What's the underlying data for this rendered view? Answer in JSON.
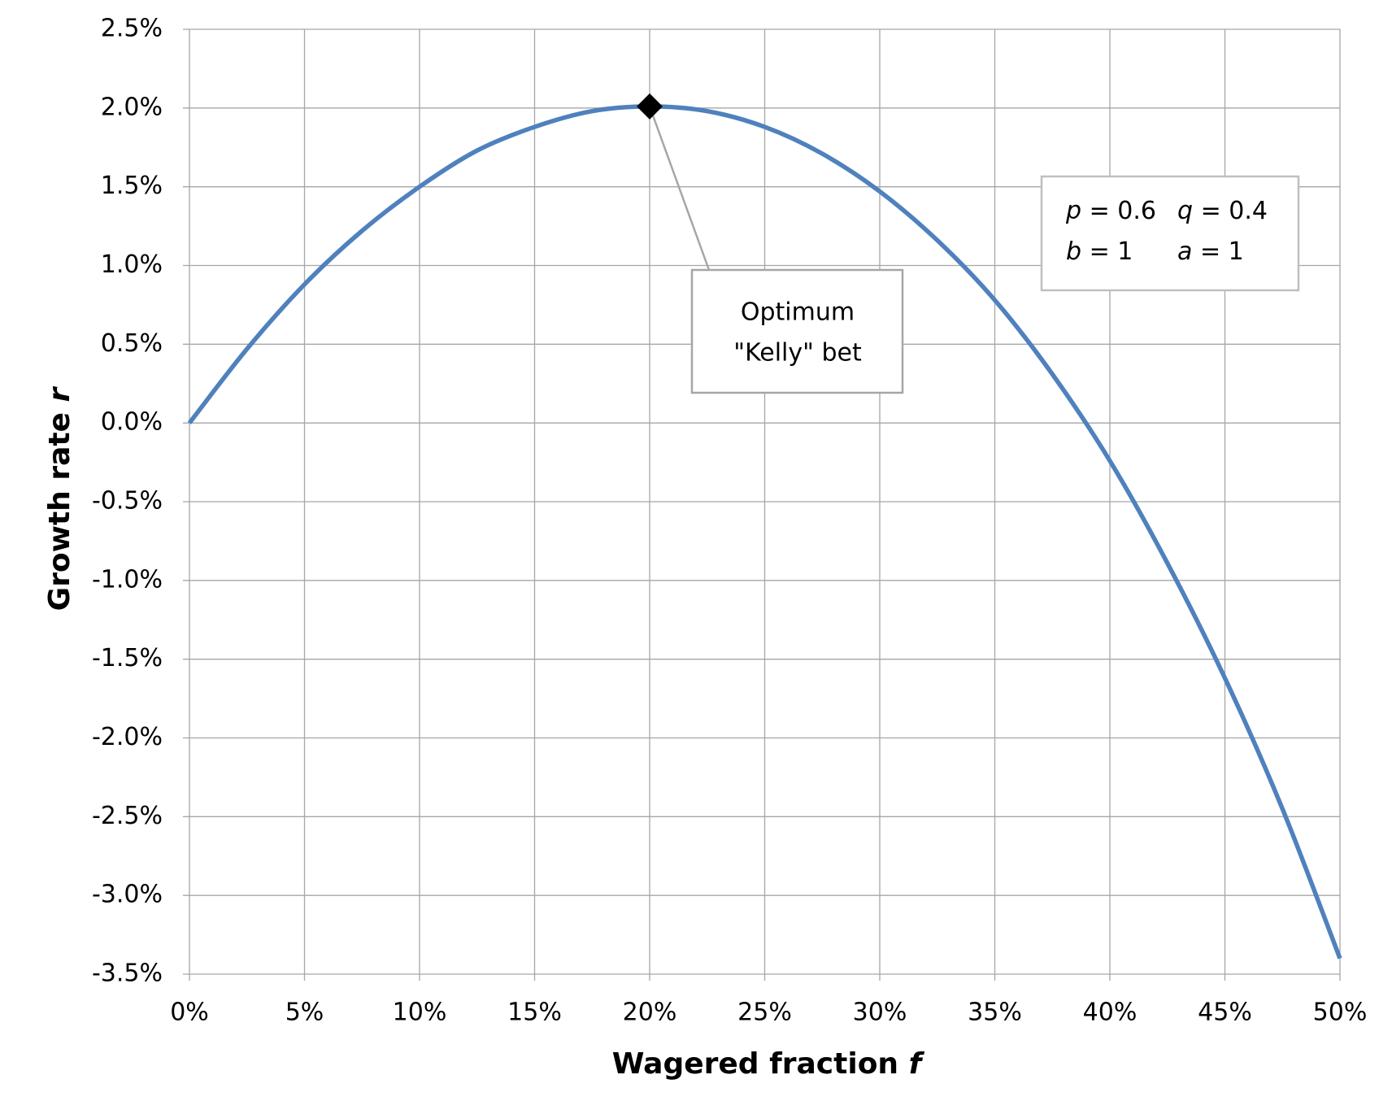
{
  "chart_data": {
    "type": "line",
    "x_label": "Wagered fraction",
    "x_label_symbol": "f",
    "y_label": "Growth rate",
    "y_label_symbol": "r",
    "x": [
      0,
      2.5,
      5,
      7.5,
      10,
      12.5,
      15,
      17.5,
      20,
      22.5,
      25,
      27.5,
      30,
      32.5,
      35,
      37.5,
      40,
      42.5,
      45,
      47.5,
      50
    ],
    "series": [
      {
        "name": "r",
        "color": "#4f81bd",
        "values": [
          0,
          0.47,
          0.88,
          1.22,
          1.5,
          1.73,
          1.88,
          1.98,
          2.01,
          1.98,
          1.88,
          1.71,
          1.47,
          1.16,
          0.78,
          0.31,
          -0.24,
          -0.89,
          -1.62,
          -2.45,
          -3.4
        ]
      }
    ],
    "marker": {
      "x": 20,
      "y": 2.01,
      "color": "#000000"
    },
    "annotation": [
      "Optimum",
      "\"Kelly\" bet"
    ],
    "params": [
      [
        {
          "symbol": "p",
          "text": "= 0.6"
        },
        {
          "symbol": "q",
          "text": "= 0.4"
        }
      ],
      [
        {
          "symbol": "b",
          "text": "= 1"
        },
        {
          "symbol": "a",
          "text": "= 1"
        }
      ]
    ],
    "xlim": [
      0,
      50
    ],
    "xticks": [
      {
        "value": 0,
        "label": "0%"
      },
      {
        "value": 5,
        "label": "5%"
      },
      {
        "value": 10,
        "label": "10%"
      },
      {
        "value": 15,
        "label": "15%"
      },
      {
        "value": 20,
        "label": "20%"
      },
      {
        "value": 25,
        "label": "25%"
      },
      {
        "value": 30,
        "label": "30%"
      },
      {
        "value": 35,
        "label": "35%"
      },
      {
        "value": 40,
        "label": "40%"
      },
      {
        "value": 45,
        "label": "45%"
      },
      {
        "value": 50,
        "label": "50%"
      }
    ],
    "ylim": [
      -3.5,
      2.5
    ],
    "yticks": [
      {
        "value": 2.5,
        "label": "2.5%"
      },
      {
        "value": 2,
        "label": "2.0%"
      },
      {
        "value": 1.5,
        "label": "1.5%"
      },
      {
        "value": 1,
        "label": "1.0%"
      },
      {
        "value": 0.5,
        "label": "0.5%"
      },
      {
        "value": 0,
        "label": "0.0%"
      },
      {
        "value": -0.5,
        "label": "-0.5%"
      },
      {
        "value": -1,
        "label": "-1.0%"
      },
      {
        "value": -1.5,
        "label": "-1.5%"
      },
      {
        "value": -2,
        "label": "-2.0%"
      },
      {
        "value": -2.5,
        "label": "-2.5%"
      },
      {
        "value": -3,
        "label": "-3.0%"
      },
      {
        "value": -3.5,
        "label": "-3.5%"
      }
    ],
    "grid": true
  }
}
